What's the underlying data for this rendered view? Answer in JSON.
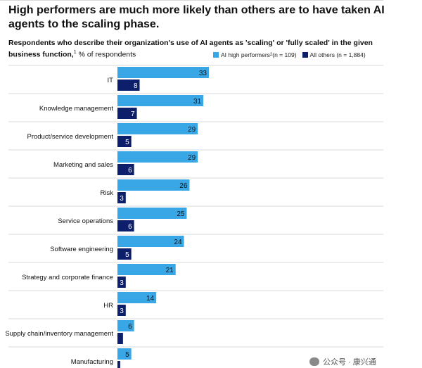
{
  "title": "High performers are much more likely than others are to have taken AI agents to the scaling phase.",
  "subtitle_bold": "Respondents who describe their organization's use of AI agents as 'scaling' or 'fully scaled' in the given business function,",
  "subtitle_sup": "1",
  "subtitle_rest": " % of respondents",
  "watermark": "公众号 · 康兴通",
  "colors": {
    "high": "#39a7e6",
    "others": "#0d1f6b",
    "rule": "#d8d8d8"
  },
  "legend": {
    "high_label": "AI high performers",
    "high_sup": "2",
    "high_n": " (n = 109)",
    "others_label": "All others (n = 1,884)"
  },
  "chart_data": {
    "type": "bar",
    "orientation": "horizontal",
    "title": "High performers are much more likely than others are to have taken AI agents to the scaling phase.",
    "ylabel": "% of respondents",
    "categories": [
      "IT",
      "Knowledge management",
      "Product/service development",
      "Marketing and sales",
      "Risk",
      "Service operations",
      "Software engineering",
      "Strategy and corporate finance",
      "HR",
      "Supply chain/inventory management",
      "Manufacturing"
    ],
    "series": [
      {
        "name": "AI high performers (n = 109)",
        "values": [
          33,
          31,
          29,
          29,
          26,
          25,
          24,
          21,
          14,
          6,
          5
        ]
      },
      {
        "name": "All others (n = 1,884)",
        "values": [
          8,
          7,
          5,
          6,
          3,
          6,
          5,
          3,
          3,
          2,
          1
        ]
      }
    ],
    "xlim": [
      0,
      45
    ],
    "legend": "top-right",
    "grid": false
  }
}
